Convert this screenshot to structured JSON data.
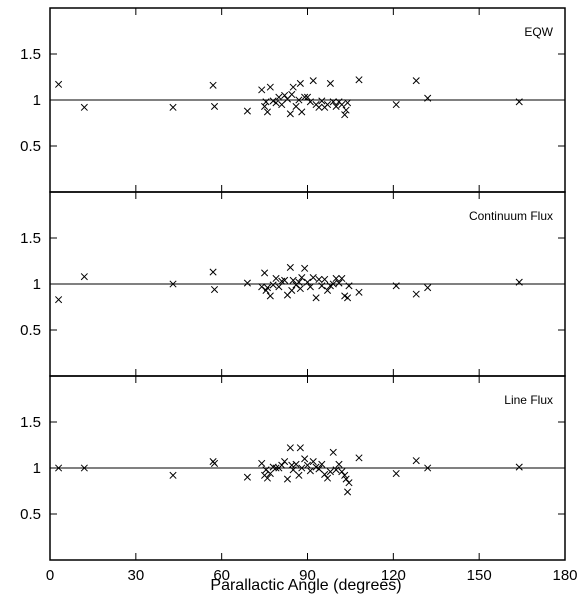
{
  "chart_data": {
    "type": "scatter",
    "xlabel": "Parallactic Angle (degrees)",
    "xlim": [
      0,
      180
    ],
    "xticks": [
      0,
      30,
      60,
      90,
      120,
      150,
      180
    ],
    "reference_line": 1,
    "panels": [
      {
        "name": "EQW",
        "ylim": [
          0,
          2
        ],
        "yticks": [
          "0.5",
          "1",
          "1.5"
        ],
        "points": [
          [
            3,
            1.17
          ],
          [
            12,
            0.92
          ],
          [
            43,
            0.92
          ],
          [
            57,
            1.16
          ],
          [
            57.5,
            0.93
          ],
          [
            69,
            0.88
          ],
          [
            74,
            1.11
          ],
          [
            75,
            0.93
          ],
          [
            75.5,
            0.98
          ],
          [
            76,
            0.87
          ],
          [
            77,
            1.14
          ],
          [
            78,
            0.99
          ],
          [
            79,
            0.97
          ],
          [
            80,
            1.03
          ],
          [
            81,
            0.95
          ],
          [
            82,
            1.05
          ],
          [
            83,
            1.01
          ],
          [
            84,
            0.85
          ],
          [
            84.5,
            1.06
          ],
          [
            85,
            1.14
          ],
          [
            86,
            0.93
          ],
          [
            87,
            1.0
          ],
          [
            87.5,
            1.18
          ],
          [
            88,
            0.87
          ],
          [
            89,
            1.03
          ],
          [
            90,
            1.03
          ],
          [
            91,
            0.98
          ],
          [
            92,
            1.21
          ],
          [
            93,
            0.95
          ],
          [
            94,
            0.92
          ],
          [
            95,
            0.99
          ],
          [
            96,
            0.92
          ],
          [
            97,
            0.95
          ],
          [
            98,
            1.18
          ],
          [
            99,
            0.98
          ],
          [
            100,
            0.93
          ],
          [
            101,
            0.98
          ],
          [
            102,
            0.95
          ],
          [
            103,
            0.84
          ],
          [
            103.5,
            0.89
          ],
          [
            104,
            0.97
          ],
          [
            108,
            1.22
          ],
          [
            121,
            0.95
          ],
          [
            128,
            1.21
          ],
          [
            132,
            1.02
          ],
          [
            164,
            0.98
          ]
        ]
      },
      {
        "name": "Continuum Flux",
        "ylim": [
          0,
          2
        ],
        "yticks": [
          "0.5",
          "1",
          "1.5"
        ],
        "points": [
          [
            3,
            0.83
          ],
          [
            12,
            1.08
          ],
          [
            43,
            1.0
          ],
          [
            57,
            1.13
          ],
          [
            57.5,
            0.94
          ],
          [
            69,
            1.01
          ],
          [
            74,
            0.97
          ],
          [
            75,
            1.12
          ],
          [
            75.5,
            0.93
          ],
          [
            76,
            0.96
          ],
          [
            77,
            0.87
          ],
          [
            78,
            0.99
          ],
          [
            79,
            1.06
          ],
          [
            80,
            0.97
          ],
          [
            81,
            1.03
          ],
          [
            82,
            1.04
          ],
          [
            83,
            0.88
          ],
          [
            84,
            1.18
          ],
          [
            84.5,
            0.93
          ],
          [
            85,
            1.04
          ],
          [
            86,
            0.99
          ],
          [
            87,
            1.02
          ],
          [
            87.5,
            0.95
          ],
          [
            88,
            1.07
          ],
          [
            89,
            1.17
          ],
          [
            90,
            1.02
          ],
          [
            91,
            0.97
          ],
          [
            92,
            1.07
          ],
          [
            93,
            0.85
          ],
          [
            94,
            1.05
          ],
          [
            95,
            0.98
          ],
          [
            96,
            1.05
          ],
          [
            97,
            0.93
          ],
          [
            98,
            0.98
          ],
          [
            99,
            1.0
          ],
          [
            100,
            1.06
          ],
          [
            101,
            1.01
          ],
          [
            102,
            1.06
          ],
          [
            103,
            0.87
          ],
          [
            104,
            0.85
          ],
          [
            104.5,
            0.98
          ],
          [
            108,
            0.91
          ],
          [
            121,
            0.98
          ],
          [
            128,
            0.89
          ],
          [
            132,
            0.96
          ],
          [
            164,
            1.02
          ]
        ]
      },
      {
        "name": "Line Flux",
        "ylim": [
          0,
          2
        ],
        "yticks": [
          "0.5",
          "1",
          "1.5"
        ],
        "points": [
          [
            3,
            1.0
          ],
          [
            12,
            1.0
          ],
          [
            43,
            0.92
          ],
          [
            57,
            1.07
          ],
          [
            57.5,
            1.05
          ],
          [
            69,
            0.9
          ],
          [
            74,
            1.05
          ],
          [
            75,
            0.92
          ],
          [
            75.5,
            0.98
          ],
          [
            76,
            0.89
          ],
          [
            77,
            0.94
          ],
          [
            78,
            1.01
          ],
          [
            79,
            1.0
          ],
          [
            80,
            1.0
          ],
          [
            81,
            1.03
          ],
          [
            82,
            1.07
          ],
          [
            83,
            0.88
          ],
          [
            84,
            1.22
          ],
          [
            84.5,
            1.03
          ],
          [
            85,
            0.98
          ],
          [
            86,
            1.04
          ],
          [
            87,
            0.92
          ],
          [
            87.5,
            1.22
          ],
          [
            88,
            1.0
          ],
          [
            89,
            1.1
          ],
          [
            90,
            1.03
          ],
          [
            91,
            0.97
          ],
          [
            92,
            1.07
          ],
          [
            93,
            1.01
          ],
          [
            94,
            0.99
          ],
          [
            95,
            1.04
          ],
          [
            96,
            0.93
          ],
          [
            97,
            0.89
          ],
          [
            98,
            0.96
          ],
          [
            99,
            1.17
          ],
          [
            100,
            0.98
          ],
          [
            101,
            1.04
          ],
          [
            102,
            0.96
          ],
          [
            103,
            0.92
          ],
          [
            103.5,
            0.88
          ],
          [
            104,
            0.74
          ],
          [
            104.5,
            0.84
          ],
          [
            108,
            1.11
          ],
          [
            121,
            0.94
          ],
          [
            128,
            1.08
          ],
          [
            132,
            1.0
          ],
          [
            164,
            1.01
          ]
        ]
      }
    ]
  }
}
